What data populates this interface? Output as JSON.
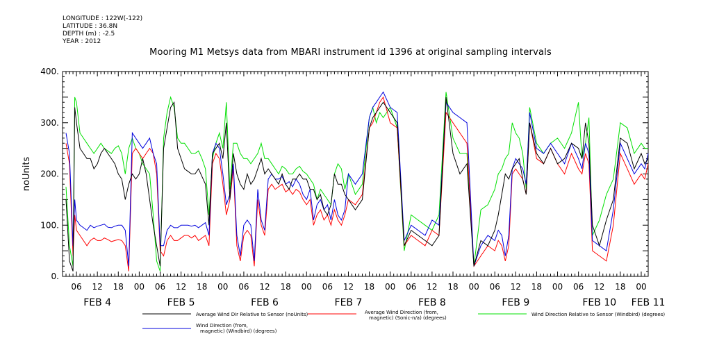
{
  "header": {
    "meta_lines": [
      "LONGITUDE : 122W(-122)",
      "LATITUDE : 36.8N",
      "DEPTH (m) : -2.5",
      "YEAR : 2012"
    ],
    "title": "Mooring M1 Metsys data from MBARI instrument id 1396 at original sampling intervals"
  },
  "chart_data": {
    "type": "line",
    "title": "Mooring M1 Metsys data from MBARI instrument id 1396 at original sampling intervals",
    "ylabel": "noUnits",
    "ylim": [
      0,
      400
    ],
    "yticks": [
      0,
      100,
      200,
      300,
      400
    ],
    "ytick_labels": [
      "0.",
      "100.",
      "200.",
      "300.",
      "400."
    ],
    "x_unit": "hours since FEB 4 00:00, 2012",
    "xlim": [
      2,
      170
    ],
    "hour_tick_labels": [
      "06",
      "12",
      "18",
      "00",
      "06",
      "12",
      "18",
      "00",
      "06",
      "12",
      "18",
      "00",
      "06",
      "12",
      "18",
      "00",
      "06",
      "12",
      "18",
      "00",
      "06",
      "12",
      "18",
      "00",
      "06",
      "12",
      "18",
      "00"
    ],
    "hour_tick_positions": [
      6,
      12,
      18,
      24,
      30,
      36,
      42,
      48,
      54,
      60,
      66,
      72,
      78,
      84,
      90,
      96,
      102,
      108,
      114,
      120,
      126,
      132,
      138,
      144,
      150,
      156,
      162,
      168
    ],
    "day_labels": [
      {
        "label": "FEB  4",
        "x": 12
      },
      {
        "label": "FEB  5",
        "x": 36
      },
      {
        "label": "FEB  6",
        "x": 60
      },
      {
        "label": "FEB  7",
        "x": 84
      },
      {
        "label": "FEB  8",
        "x": 108
      },
      {
        "label": "FEB  9",
        "x": 132
      },
      {
        "label": "FEB 10",
        "x": 156
      },
      {
        "label": "FEB 11",
        "x": 170
      }
    ],
    "grid": false,
    "legend_position": "bottom",
    "series": [
      {
        "name": "Average Wind Dir Relative to Sensor (noUnits)",
        "color": "#000000",
        "x": [
          3,
          4,
          5,
          5.5,
          6,
          7,
          8,
          9,
          10,
          11,
          12,
          13,
          14,
          15,
          16,
          17,
          18,
          19,
          20,
          21,
          22,
          23,
          24,
          25,
          26,
          27,
          28,
          29,
          30,
          31,
          32,
          33,
          34,
          35,
          36,
          37,
          38,
          39,
          40,
          41,
          42,
          43,
          44,
          45,
          46,
          47,
          48,
          49,
          50,
          51,
          52,
          53,
          54,
          55,
          56,
          57,
          58,
          59,
          60,
          61,
          62,
          63,
          64,
          65,
          66,
          67,
          68,
          69,
          70,
          71,
          72,
          73,
          74,
          75,
          76,
          77,
          78,
          79,
          80,
          81,
          82,
          83,
          84,
          86,
          88,
          90,
          91,
          92,
          93,
          94,
          96,
          98,
          100,
          102,
          104,
          106,
          108,
          110,
          112,
          114,
          116,
          118,
          120,
          122,
          124,
          126,
          127,
          128,
          129,
          130,
          131,
          132,
          133,
          134,
          135,
          136,
          138,
          140,
          142,
          144,
          146,
          148,
          150,
          151,
          152,
          153,
          154,
          156,
          158,
          160,
          162,
          164,
          166,
          168,
          169,
          170
        ],
        "y": [
          150,
          30,
          10,
          330,
          300,
          250,
          240,
          230,
          230,
          210,
          220,
          240,
          250,
          240,
          230,
          220,
          200,
          190,
          150,
          180,
          200,
          190,
          200,
          230,
          200,
          150,
          100,
          60,
          20,
          250,
          290,
          330,
          340,
          250,
          230,
          210,
          205,
          200,
          200,
          210,
          195,
          180,
          100,
          240,
          250,
          260,
          230,
          300,
          150,
          240,
          200,
          180,
          170,
          200,
          180,
          190,
          210,
          230,
          200,
          210,
          200,
          190,
          180,
          200,
          180,
          170,
          190,
          190,
          200,
          190,
          190,
          170,
          170,
          150,
          160,
          130,
          120,
          140,
          200,
          180,
          180,
          160,
          150,
          130,
          150,
          290,
          310,
          320,
          330,
          340,
          320,
          300,
          60,
          90,
          80,
          70,
          60,
          80,
          350,
          240,
          200,
          220,
          20,
          70,
          60,
          90,
          120,
          160,
          200,
          190,
          210,
          220,
          230,
          190,
          160,
          300,
          240,
          220,
          250,
          220,
          230,
          260,
          250,
          230,
          300,
          260,
          100,
          60,
          110,
          150,
          270,
          260,
          210,
          240,
          220,
          230
        ]
      },
      {
        "name": "Average Wind Direction (from, magnetic) (Sonic-n/a) (degrees)",
        "color": "#ff0000",
        "x": [
          3,
          4,
          5,
          5.5,
          6,
          7,
          8,
          9,
          10,
          11,
          12,
          13,
          14,
          15,
          16,
          17,
          18,
          19,
          20,
          21,
          22,
          23,
          24,
          25,
          26,
          27,
          28,
          29,
          30,
          31,
          32,
          33,
          34,
          35,
          36,
          37,
          38,
          39,
          40,
          41,
          42,
          43,
          44,
          45,
          46,
          47,
          48,
          49,
          50,
          51,
          52,
          53,
          54,
          55,
          56,
          57,
          58,
          59,
          60,
          61,
          62,
          63,
          64,
          65,
          66,
          67,
          68,
          69,
          70,
          71,
          72,
          73,
          74,
          75,
          76,
          77,
          78,
          79,
          80,
          81,
          82,
          83,
          84,
          86,
          88,
          90,
          91,
          92,
          93,
          94,
          96,
          98,
          100,
          102,
          104,
          106,
          108,
          110,
          112,
          114,
          116,
          118,
          120,
          122,
          124,
          126,
          127,
          128,
          129,
          130,
          131,
          132,
          133,
          134,
          135,
          136,
          138,
          140,
          142,
          144,
          146,
          148,
          150,
          151,
          152,
          153,
          154,
          156,
          158,
          160,
          162,
          164,
          166,
          168,
          169,
          170
        ],
        "y": [
          260,
          220,
          40,
          120,
          90,
          80,
          70,
          60,
          70,
          75,
          70,
          70,
          75,
          72,
          68,
          70,
          72,
          70,
          60,
          10,
          240,
          250,
          240,
          230,
          240,
          250,
          240,
          200,
          50,
          40,
          70,
          80,
          70,
          70,
          75,
          80,
          80,
          75,
          80,
          70,
          75,
          80,
          60,
          220,
          240,
          230,
          180,
          120,
          150,
          210,
          60,
          30,
          80,
          90,
          80,
          20,
          150,
          100,
          80,
          170,
          180,
          170,
          175,
          180,
          165,
          170,
          160,
          170,
          165,
          150,
          140,
          150,
          100,
          120,
          130,
          110,
          120,
          100,
          130,
          110,
          100,
          120,
          150,
          140,
          160,
          290,
          300,
          320,
          340,
          350,
          300,
          290,
          60,
          80,
          70,
          60,
          90,
          80,
          320,
          300,
          280,
          260,
          20,
          40,
          60,
          50,
          70,
          60,
          30,
          60,
          200,
          210,
          200,
          190,
          160,
          300,
          230,
          220,
          250,
          220,
          200,
          240,
          210,
          200,
          240,
          220,
          50,
          40,
          30,
          100,
          240,
          210,
          180,
          200,
          190,
          220
        ]
      },
      {
        "name": "Wind Direction Relative to Sensor (Windbird) (degrees)",
        "color": "#00e000",
        "x": [
          3,
          4,
          5,
          5.5,
          6,
          7,
          8,
          9,
          10,
          11,
          12,
          13,
          14,
          15,
          16,
          17,
          18,
          19,
          20,
          21,
          22,
          23,
          24,
          25,
          26,
          27,
          28,
          29,
          30,
          31,
          32,
          33,
          34,
          35,
          36,
          37,
          38,
          39,
          40,
          41,
          42,
          43,
          44,
          45,
          46,
          47,
          48,
          49,
          50,
          51,
          52,
          53,
          54,
          55,
          56,
          57,
          58,
          59,
          60,
          61,
          62,
          63,
          64,
          65,
          66,
          67,
          68,
          69,
          70,
          71,
          72,
          73,
          74,
          75,
          76,
          77,
          78,
          79,
          80,
          81,
          82,
          83,
          84,
          86,
          88,
          90,
          91,
          92,
          93,
          94,
          96,
          98,
          100,
          102,
          104,
          106,
          108,
          110,
          112,
          114,
          116,
          118,
          120,
          122,
          124,
          126,
          127,
          128,
          129,
          130,
          131,
          132,
          133,
          134,
          135,
          136,
          138,
          140,
          142,
          144,
          146,
          148,
          150,
          151,
          152,
          153,
          154,
          156,
          158,
          160,
          162,
          164,
          166,
          168,
          169,
          170
        ],
        "y": [
          175,
          60,
          20,
          350,
          340,
          280,
          270,
          260,
          250,
          240,
          250,
          260,
          250,
          245,
          240,
          250,
          255,
          240,
          200,
          250,
          270,
          250,
          240,
          220,
          210,
          200,
          120,
          30,
          10,
          270,
          320,
          350,
          330,
          270,
          260,
          260,
          250,
          240,
          240,
          245,
          230,
          210,
          120,
          230,
          260,
          280,
          250,
          340,
          170,
          260,
          260,
          240,
          230,
          230,
          220,
          230,
          240,
          260,
          230,
          230,
          220,
          210,
          200,
          215,
          210,
          200,
          200,
          210,
          215,
          205,
          200,
          190,
          180,
          150,
          170,
          160,
          150,
          140,
          200,
          220,
          210,
          170,
          200,
          160,
          180,
          310,
          330,
          300,
          320,
          310,
          330,
          290,
          50,
          120,
          110,
          100,
          90,
          120,
          360,
          270,
          240,
          240,
          20,
          130,
          140,
          170,
          200,
          210,
          230,
          240,
          300,
          280,
          270,
          240,
          170,
          330,
          260,
          240,
          260,
          270,
          250,
          280,
          340,
          230,
          260,
          310,
          80,
          110,
          160,
          190,
          300,
          290,
          240,
          260,
          250,
          250
        ]
      },
      {
        "name": "Wind Direction (from, magnetic) (Windbird) (degrees)",
        "color": "#0000dd",
        "x": [
          3,
          4,
          5,
          5.5,
          6,
          7,
          8,
          9,
          10,
          11,
          12,
          13,
          14,
          15,
          16,
          17,
          18,
          19,
          20,
          21,
          22,
          23,
          24,
          25,
          26,
          27,
          28,
          29,
          30,
          31,
          32,
          33,
          34,
          35,
          36,
          37,
          38,
          39,
          40,
          41,
          42,
          43,
          44,
          45,
          46,
          47,
          48,
          49,
          50,
          51,
          52,
          53,
          54,
          55,
          56,
          57,
          58,
          59,
          60,
          61,
          62,
          63,
          64,
          65,
          66,
          67,
          68,
          69,
          70,
          71,
          72,
          73,
          74,
          75,
          76,
          77,
          78,
          79,
          80,
          81,
          82,
          83,
          84,
          86,
          88,
          90,
          91,
          92,
          93,
          94,
          96,
          98,
          100,
          102,
          104,
          106,
          108,
          110,
          112,
          114,
          116,
          118,
          120,
          122,
          124,
          126,
          127,
          128,
          129,
          130,
          131,
          132,
          133,
          134,
          135,
          136,
          138,
          140,
          142,
          144,
          146,
          148,
          150,
          151,
          152,
          153,
          154,
          156,
          158,
          160,
          162,
          164,
          166,
          168,
          169,
          170
        ],
        "y": [
          280,
          240,
          60,
          150,
          110,
          100,
          95,
          90,
          100,
          95,
          98,
          100,
          102,
          96,
          95,
          98,
          100,
          100,
          90,
          20,
          280,
          270,
          260,
          250,
          260,
          270,
          240,
          220,
          60,
          60,
          90,
          100,
          95,
          95,
          100,
          100,
          100,
          98,
          100,
          95,
          100,
          105,
          80,
          240,
          260,
          250,
          200,
          140,
          160,
          220,
          80,
          40,
          100,
          110,
          100,
          30,
          170,
          110,
          90,
          190,
          200,
          190,
          190,
          195,
          180,
          185,
          175,
          190,
          180,
          160,
          150,
          170,
          110,
          140,
          150,
          130,
          140,
          110,
          150,
          120,
          110,
          130,
          200,
          180,
          200,
          310,
          330,
          340,
          350,
          360,
          330,
          320,
          70,
          100,
          90,
          80,
          110,
          100,
          340,
          320,
          310,
          300,
          20,
          60,
          80,
          70,
          90,
          80,
          40,
          80,
          210,
          230,
          220,
          210,
          180,
          320,
          250,
          240,
          260,
          240,
          220,
          260,
          230,
          210,
          260,
          240,
          70,
          60,
          50,
          130,
          260,
          230,
          200,
          220,
          210,
          240
        ]
      }
    ],
    "legend": [
      {
        "label": "Average Wind Dir Relative to Sensor (noUnits)",
        "color": "#000000"
      },
      {
        "label": "Average Wind Direction (from, magnetic) (Sonic-n/a) (degrees)",
        "color": "#ff0000"
      },
      {
        "label": "Wind Direction Relative to Sensor (Windbird) (degrees)",
        "color": "#00e000"
      },
      {
        "label": "Wind Direction (from, magnetic) (Windbird) (degrees)",
        "color": "#0000dd"
      }
    ]
  }
}
